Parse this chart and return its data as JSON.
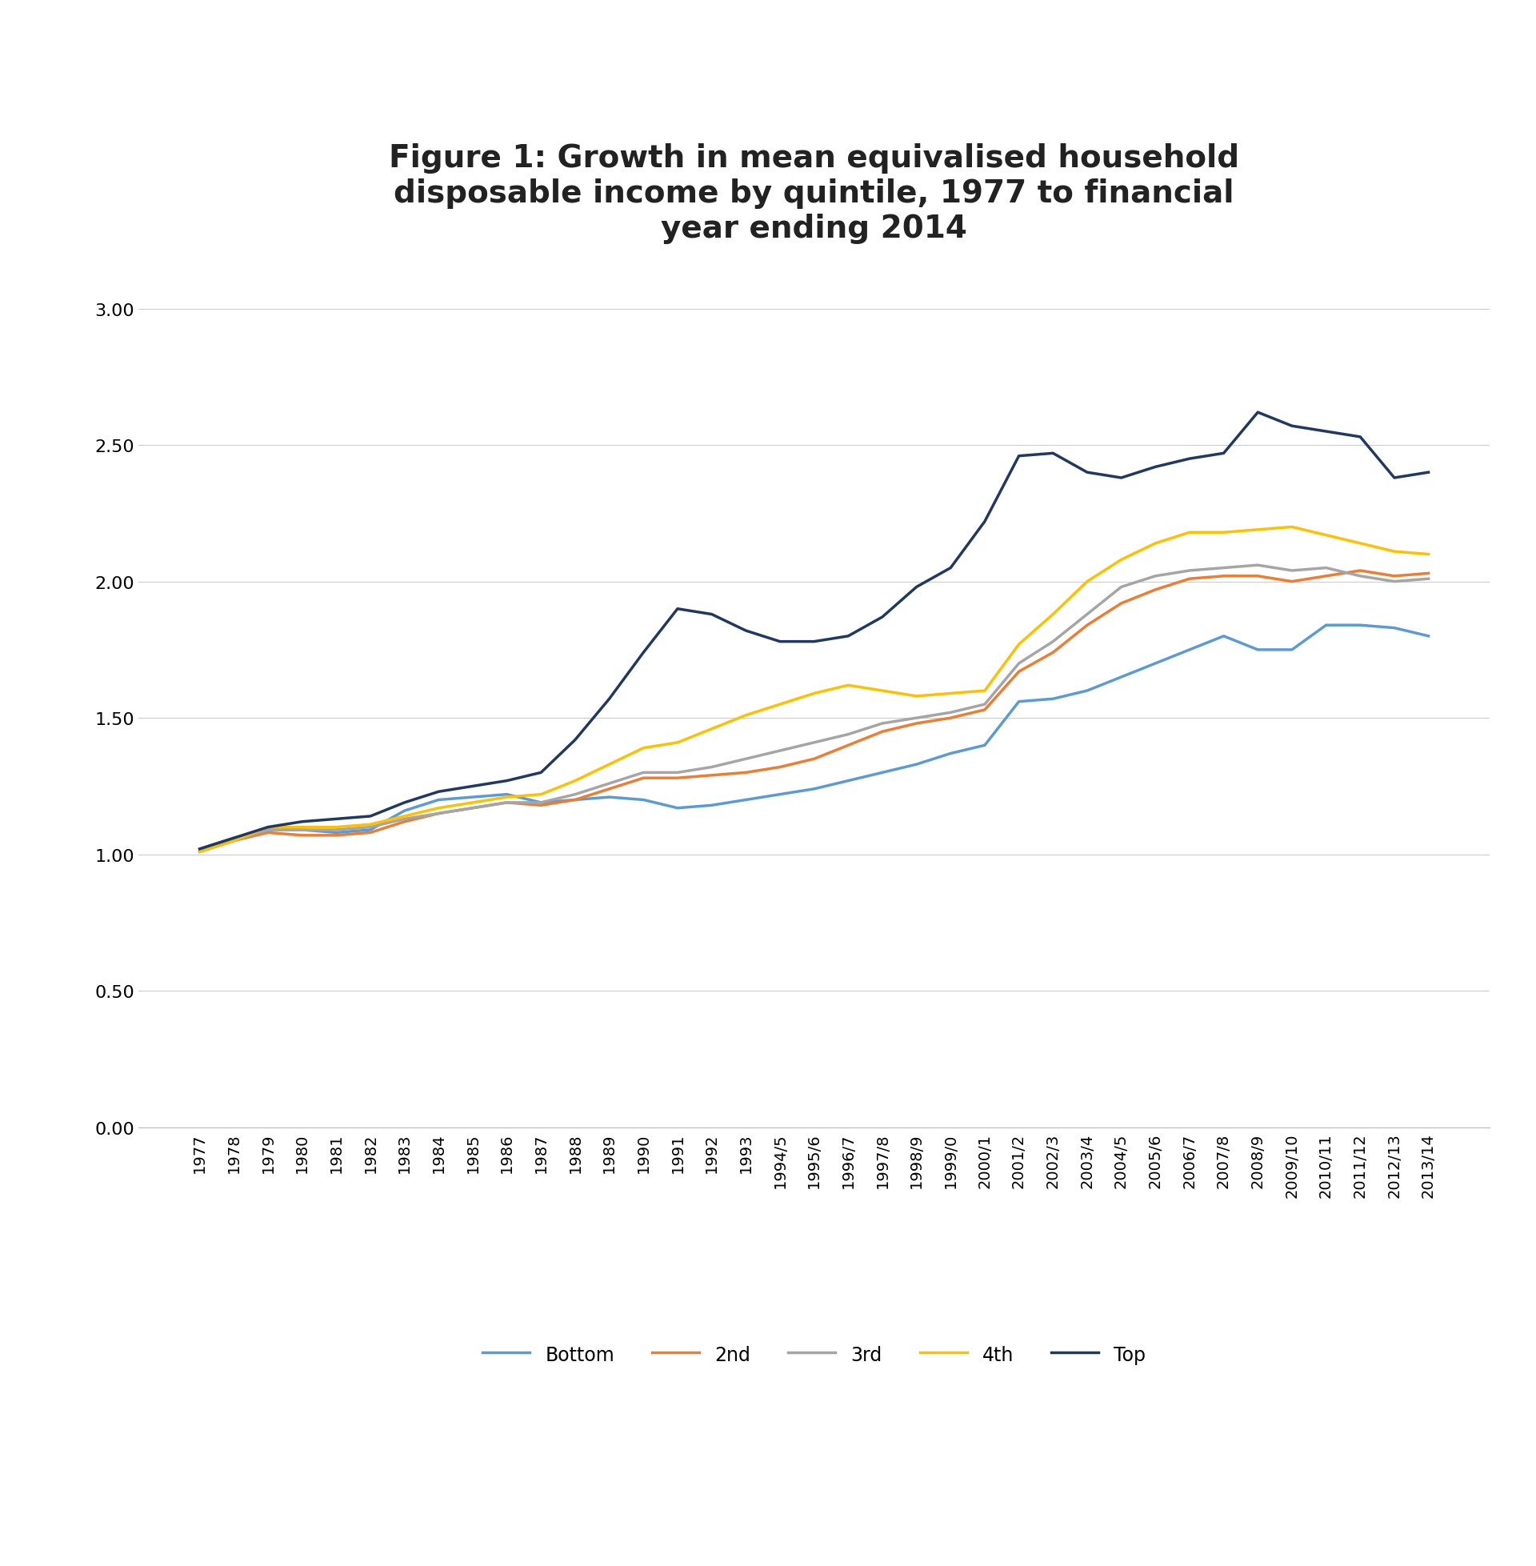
{
  "title": "Figure 1: Growth in mean equivalised household\ndisposable income by quintile, 1977 to financial\nyear ending 2014",
  "title_fontsize": 28,
  "background_color": "#ffffff",
  "legend_labels": [
    "Bottom",
    "2nd",
    "3rd",
    "4th",
    "Top"
  ],
  "legend_colors": [
    "#5B9BD5",
    "#ED7D31",
    "#A5A5A5",
    "#FFC000",
    "#203864"
  ],
  "ylim": [
    0.0,
    3.1
  ],
  "yticks": [
    0.0,
    0.5,
    1.0,
    1.5,
    2.0,
    2.5,
    3.0
  ],
  "x_labels": [
    "1977",
    "1978",
    "1979",
    "1980",
    "1981",
    "1982",
    "1983",
    "1984",
    "1985",
    "1986",
    "1987",
    "1988",
    "1989",
    "1990",
    "1991",
    "1992",
    "1993",
    "1994/5",
    "1995/6",
    "1996/7",
    "1997/8",
    "1998/9",
    "1999/0",
    "2000/1",
    "2001/2",
    "2002/3",
    "2003/4",
    "2004/5",
    "2005/6",
    "2006/7",
    "2007/8",
    "2008/9",
    "2009/10",
    "2010/11",
    "2011/12",
    "2012/13",
    "2013/14"
  ],
  "series": {
    "bottom": [
      1.02,
      1.06,
      1.09,
      1.09,
      1.08,
      1.09,
      1.16,
      1.2,
      1.21,
      1.22,
      1.19,
      1.2,
      1.21,
      1.2,
      1.17,
      1.18,
      1.2,
      1.22,
      1.24,
      1.27,
      1.3,
      1.33,
      1.37,
      1.4,
      1.56,
      1.57,
      1.6,
      1.65,
      1.7,
      1.75,
      1.8,
      1.75,
      1.75,
      1.84,
      1.84,
      1.83,
      1.8
    ],
    "q2nd": [
      1.01,
      1.05,
      1.08,
      1.07,
      1.07,
      1.08,
      1.12,
      1.15,
      1.17,
      1.19,
      1.18,
      1.2,
      1.24,
      1.28,
      1.28,
      1.29,
      1.3,
      1.32,
      1.35,
      1.4,
      1.45,
      1.48,
      1.5,
      1.53,
      1.67,
      1.74,
      1.84,
      1.92,
      1.97,
      2.01,
      2.02,
      2.02,
      2.0,
      2.02,
      2.04,
      2.02,
      2.03
    ],
    "q3rd": [
      1.01,
      1.05,
      1.09,
      1.09,
      1.09,
      1.1,
      1.13,
      1.15,
      1.17,
      1.19,
      1.19,
      1.22,
      1.26,
      1.3,
      1.3,
      1.32,
      1.35,
      1.38,
      1.41,
      1.44,
      1.48,
      1.5,
      1.52,
      1.55,
      1.7,
      1.78,
      1.88,
      1.98,
      2.02,
      2.04,
      2.05,
      2.06,
      2.04,
      2.05,
      2.02,
      2.0,
      2.01
    ],
    "q4th": [
      1.01,
      1.05,
      1.1,
      1.1,
      1.1,
      1.11,
      1.14,
      1.17,
      1.19,
      1.21,
      1.22,
      1.27,
      1.33,
      1.39,
      1.41,
      1.46,
      1.51,
      1.55,
      1.59,
      1.62,
      1.6,
      1.58,
      1.59,
      1.6,
      1.77,
      1.88,
      2.0,
      2.08,
      2.14,
      2.18,
      2.18,
      2.19,
      2.2,
      2.17,
      2.14,
      2.11,
      2.1
    ],
    "top": [
      1.02,
      1.06,
      1.1,
      1.12,
      1.13,
      1.14,
      1.19,
      1.23,
      1.25,
      1.27,
      1.3,
      1.42,
      1.57,
      1.74,
      1.9,
      1.88,
      1.82,
      1.78,
      1.78,
      1.8,
      1.87,
      1.98,
      2.05,
      2.22,
      2.46,
      2.47,
      2.4,
      2.38,
      2.42,
      2.45,
      2.47,
      2.62,
      2.57,
      2.55,
      2.53,
      2.38,
      2.4
    ]
  }
}
